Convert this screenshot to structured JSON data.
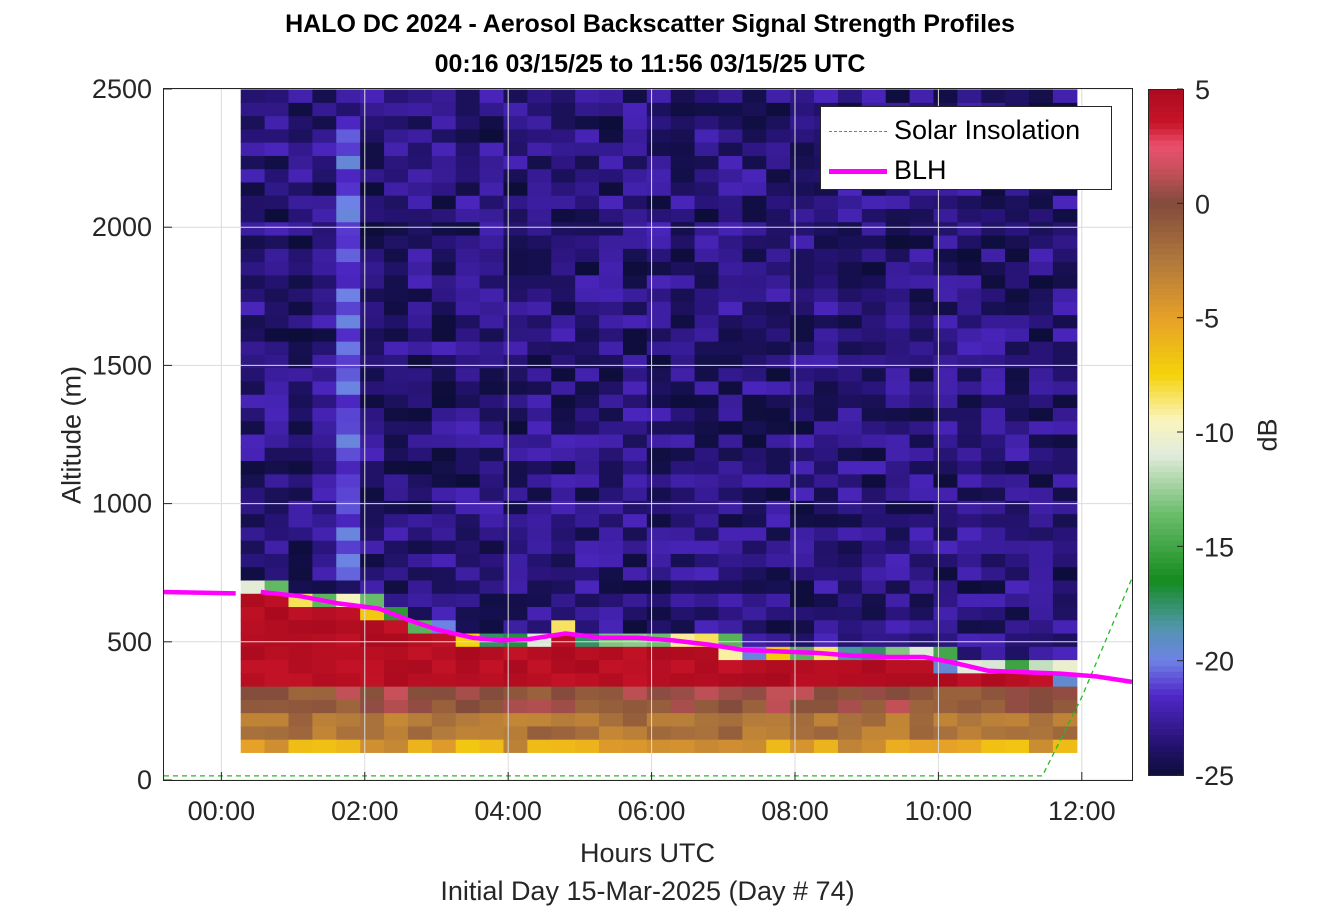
{
  "title": "HALO DC 2024 - Aerosol Backscatter Signal Strength Profiles",
  "subtitle": "00:16 03/15/25 to 11:56 03/15/25  UTC",
  "colors": {
    "blh": "#ff00ff",
    "solar": "#22bb22",
    "background_signal": "#15134a",
    "boundary_layer": "#b00c1e"
  },
  "chart_data": {
    "type": "heatmap",
    "title": "HALO DC 2024 - Aerosol Backscatter Signal Strength Profiles",
    "subtitle": "00:16 03/15/25 to 11:56 03/15/25  UTC",
    "xlabel": "Hours UTC",
    "xlabel2": "Initial Day 15-Mar-2025 (Day # 74)",
    "ylabel": "Altitude (m)",
    "colorbar_label": "dB",
    "xlim": [
      -0.8,
      12.7
    ],
    "ylim": [
      0,
      2500
    ],
    "x_ticks": [
      0,
      2,
      4,
      6,
      8,
      10,
      12
    ],
    "x_tick_labels": [
      "00:00",
      "02:00",
      "04:00",
      "06:00",
      "08:00",
      "10:00",
      "12:00"
    ],
    "y_ticks": [
      0,
      500,
      1000,
      1500,
      2000,
      2500
    ],
    "y_tick_labels": [
      "0",
      "500",
      "1000",
      "1500",
      "2000",
      "2500"
    ],
    "colorbar_ticks": [
      5,
      0,
      -5,
      -10,
      -15,
      -20,
      -25
    ],
    "colorbar_range": [
      -25,
      5
    ],
    "grid": true,
    "legend_position": "top-right",
    "legend": [
      {
        "label": "Solar Insolation",
        "style": "dashed"
      },
      {
        "label": "BLH",
        "style": "solid"
      }
    ],
    "heatmap_x_range": [
      0.27,
      11.93
    ],
    "heatmap_y_range": [
      100,
      2500
    ],
    "blh": {
      "x": [
        -0.8,
        0.2,
        0.55,
        1.1,
        1.6,
        2.2,
        2.6,
        3.0,
        3.5,
        3.9,
        4.3,
        4.8,
        5.3,
        5.8,
        6.3,
        6.8,
        7.3,
        7.8,
        8.3,
        8.8,
        9.3,
        9.8,
        10.2,
        10.7,
        11.2,
        11.7,
        12.2,
        12.7
      ],
      "y": [
        680,
        675,
        680,
        665,
        640,
        620,
        580,
        545,
        515,
        505,
        510,
        530,
        515,
        515,
        505,
        490,
        470,
        465,
        460,
        450,
        445,
        445,
        425,
        395,
        390,
        385,
        375,
        355
      ]
    },
    "solar_insolation": {
      "x": [
        -0.8,
        11.45,
        12.0,
        12.7
      ],
      "y": [
        15,
        15,
        300,
        730
      ]
    }
  }
}
